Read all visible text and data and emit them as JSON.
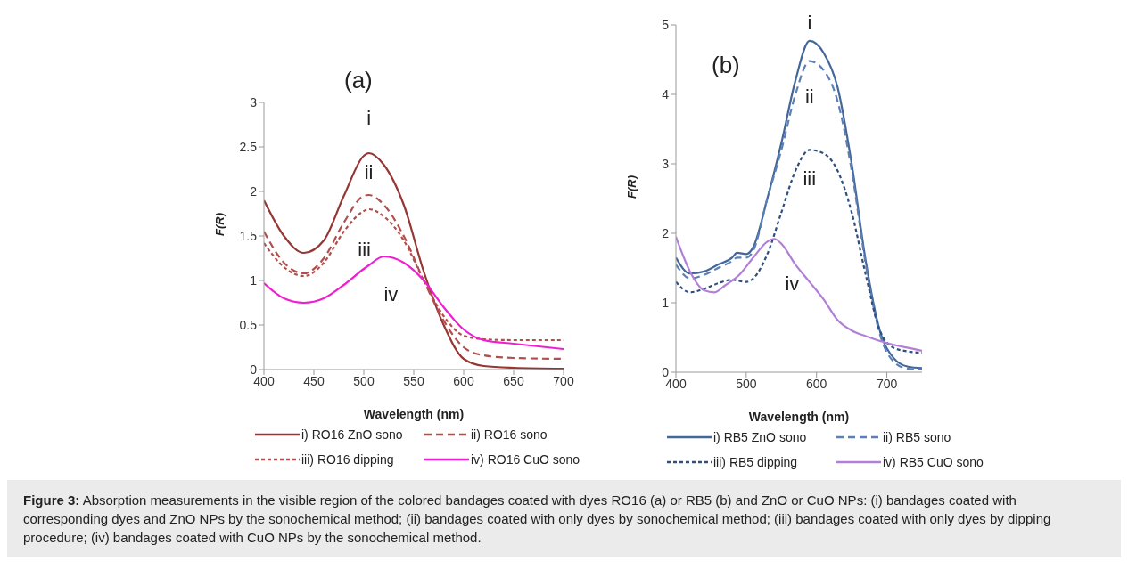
{
  "chart_data": [
    {
      "type": "line",
      "title": "(a)",
      "xlabel": "Wavelength (nm)",
      "ylabel": "F(R)",
      "xlim": [
        400,
        700
      ],
      "xticks": [
        400,
        450,
        500,
        550,
        600,
        650,
        700
      ],
      "ylim": [
        0,
        3
      ],
      "yticks": [
        0,
        0.5,
        1,
        1.5,
        2,
        2.5,
        3
      ],
      "grid": false,
      "legend": "bottom",
      "marker": "none",
      "x": [
        400,
        420,
        440,
        460,
        480,
        500,
        505,
        520,
        540,
        560,
        580,
        600,
        620,
        650,
        700
      ],
      "series": [
        {
          "name": "i) RO16 ZnO sono",
          "color": "#953735",
          "line_style": "solid",
          "values": [
            1.9,
            1.5,
            1.31,
            1.45,
            1.95,
            2.4,
            2.43,
            2.3,
            1.85,
            1.1,
            0.5,
            0.12,
            0.04,
            0.02,
            0.01
          ]
        },
        {
          "name": "ii) RO16 sono",
          "color": "#b0504e",
          "line_style": "dashed",
          "values": [
            1.55,
            1.2,
            1.08,
            1.25,
            1.65,
            1.95,
            1.96,
            1.85,
            1.5,
            1.0,
            0.55,
            0.25,
            0.16,
            0.13,
            0.12
          ]
        },
        {
          "name": "iii) RO16 dipping",
          "color": "#b0504e",
          "line_style": "dotted",
          "values": [
            1.42,
            1.15,
            1.05,
            1.2,
            1.55,
            1.78,
            1.8,
            1.72,
            1.45,
            1.0,
            0.6,
            0.38,
            0.34,
            0.33,
            0.33
          ]
        },
        {
          "name": "iv) RO16 CuO sono",
          "color": "#ee1fd0",
          "line_style": "solid",
          "values": [
            0.97,
            0.8,
            0.75,
            0.8,
            0.95,
            1.13,
            1.17,
            1.27,
            1.2,
            1.0,
            0.7,
            0.45,
            0.33,
            0.29,
            0.23
          ]
        }
      ],
      "annotations": [
        "i",
        "ii",
        "iii",
        "iv"
      ]
    },
    {
      "type": "line",
      "title": "(b)",
      "xlabel": "Wavelength (nm)",
      "ylabel": "F(R)",
      "xlim": [
        400,
        750
      ],
      "xticks": [
        400,
        500,
        600,
        700
      ],
      "ylim": [
        0,
        5
      ],
      "yticks": [
        0,
        1,
        2,
        3,
        4,
        5
      ],
      "grid": false,
      "legend": "bottom",
      "marker": "none",
      "series": [
        {
          "name": "i) RB5 ZnO sono",
          "color": "#44679a",
          "line_style": "solid",
          "x": [
            400,
            420,
            440,
            460,
            480,
            487,
            500,
            510,
            530,
            550,
            570,
            590,
            610,
            630,
            650,
            670,
            690,
            710,
            730,
            750
          ],
          "values": [
            1.65,
            1.42,
            1.45,
            1.55,
            1.65,
            1.72,
            1.7,
            1.8,
            2.5,
            3.3,
            4.2,
            4.77,
            4.6,
            4.1,
            3.0,
            1.6,
            0.6,
            0.2,
            0.08,
            0.06
          ]
        },
        {
          "name": "ii) RB5 sono",
          "color": "#5b80b5",
          "line_style": "dashed",
          "x": [
            400,
            420,
            440,
            460,
            480,
            487,
            500,
            510,
            530,
            550,
            570,
            590,
            610,
            630,
            650,
            670,
            690,
            710,
            730,
            750
          ],
          "values": [
            1.55,
            1.35,
            1.4,
            1.5,
            1.6,
            1.65,
            1.65,
            1.75,
            2.5,
            3.2,
            4.0,
            4.48,
            4.35,
            3.9,
            2.9,
            1.55,
            0.55,
            0.15,
            0.05,
            0.04
          ]
        },
        {
          "name": "iii) RB5 dipping",
          "color": "#2f4f7f",
          "line_style": "dotted",
          "x": [
            400,
            420,
            440,
            460,
            480,
            500,
            510,
            530,
            550,
            570,
            590,
            610,
            630,
            650,
            670,
            690,
            710,
            730,
            750
          ],
          "values": [
            1.3,
            1.15,
            1.2,
            1.28,
            1.33,
            1.3,
            1.35,
            1.7,
            2.3,
            2.9,
            3.2,
            3.15,
            2.9,
            2.3,
            1.4,
            0.6,
            0.35,
            0.3,
            0.28
          ]
        },
        {
          "name": "iv) RB5 CuO sono",
          "color": "#b27fd8",
          "line_style": "solid",
          "x": [
            400,
            420,
            440,
            455,
            470,
            490,
            510,
            530,
            540,
            550,
            570,
            590,
            610,
            630,
            650,
            670,
            700,
            730,
            750
          ],
          "values": [
            1.95,
            1.45,
            1.18,
            1.15,
            1.25,
            1.4,
            1.65,
            1.88,
            1.92,
            1.85,
            1.55,
            1.3,
            1.05,
            0.75,
            0.6,
            0.52,
            0.42,
            0.35,
            0.31
          ]
        }
      ],
      "annotations": [
        "i",
        "ii",
        "iii",
        "iv",
        "Figure 3: Absorption measurements in the visible region of the colored bandages coated with dyes RO16 (a) or RB5 (b) and ZnO or CuO NPs: (i) bandages coated with corresponding dyes and ZnO NPs by the sonochemical method; (ii) bandages coated with only dyes by sonochemical method; (iii) bandages coated with only dyes by dipping procedure; (iv) bandages coated with CuO NPs by the sonochemical method."
      ]
    }
  ]
}
